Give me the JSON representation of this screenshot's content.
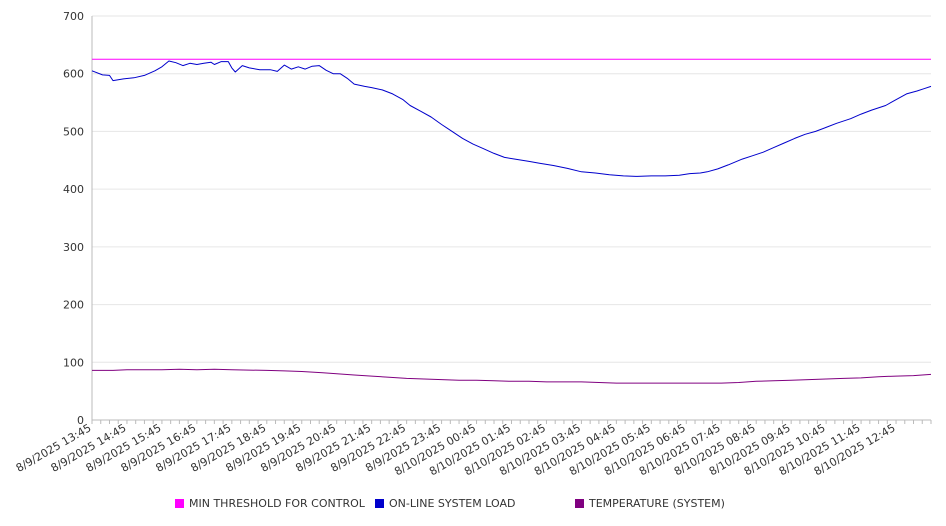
{
  "chart_data": {
    "type": "line",
    "ylim": [
      0,
      700
    ],
    "yticks": [
      0,
      100,
      200,
      300,
      400,
      500,
      600,
      700
    ],
    "x_tick_labels": [
      "8/9/2025 13:45",
      "8/9/2025 14:45",
      "8/9/2025 15:45",
      "8/9/2025 16:45",
      "8/9/2025 17:45",
      "8/9/2025 18:45",
      "8/9/2025 19:45",
      "8/9/2025 20:45",
      "8/9/2025 21:45",
      "8/9/2025 22:45",
      "8/9/2025 23:45",
      "8/10/2025 00:45",
      "8/10/2025 01:45",
      "8/10/2025 02:45",
      "8/10/2025 03:45",
      "8/10/2025 04:45",
      "8/10/2025 05:45",
      "8/10/2025 06:45",
      "8/10/2025 07:45",
      "8/10/2025 08:45",
      "8/10/2025 09:45",
      "8/10/2025 10:45",
      "8/10/2025 11:45",
      "8/10/2025 12:45"
    ],
    "x_hours": [
      0,
      24
    ],
    "grid": true,
    "legend_position": "bottom",
    "series": [
      {
        "name": "MIN THRESHOLD FOR CONTROL",
        "color": "#ff00ff",
        "points": [
          [
            0,
            625
          ],
          [
            24,
            625
          ]
        ]
      },
      {
        "name": "ON-LINE SYSTEM LOAD",
        "color": "#0000cc",
        "points": [
          [
            0,
            605
          ],
          [
            0.3,
            598
          ],
          [
            0.5,
            597
          ],
          [
            0.6,
            588
          ],
          [
            0.9,
            591
          ],
          [
            1.2,
            593
          ],
          [
            1.5,
            597
          ],
          [
            1.8,
            605
          ],
          [
            2.0,
            612
          ],
          [
            2.2,
            622
          ],
          [
            2.4,
            619
          ],
          [
            2.6,
            614
          ],
          [
            2.8,
            618
          ],
          [
            3.0,
            616
          ],
          [
            3.2,
            618
          ],
          [
            3.4,
            620
          ],
          [
            3.5,
            616
          ],
          [
            3.7,
            621
          ],
          [
            3.9,
            621
          ],
          [
            4.0,
            610
          ],
          [
            4.1,
            603
          ],
          [
            4.3,
            614
          ],
          [
            4.5,
            610
          ],
          [
            4.8,
            607
          ],
          [
            5.1,
            607
          ],
          [
            5.3,
            604
          ],
          [
            5.5,
            615
          ],
          [
            5.7,
            608
          ],
          [
            5.9,
            612
          ],
          [
            6.1,
            608
          ],
          [
            6.3,
            613
          ],
          [
            6.5,
            614
          ],
          [
            6.7,
            606
          ],
          [
            6.9,
            600
          ],
          [
            7.1,
            600
          ],
          [
            7.3,
            592
          ],
          [
            7.5,
            582
          ],
          [
            7.8,
            578
          ],
          [
            8.0,
            576
          ],
          [
            8.3,
            572
          ],
          [
            8.6,
            565
          ],
          [
            8.9,
            555
          ],
          [
            9.1,
            545
          ],
          [
            9.4,
            535
          ],
          [
            9.7,
            525
          ],
          [
            10.0,
            512
          ],
          [
            10.3,
            500
          ],
          [
            10.6,
            488
          ],
          [
            10.9,
            478
          ],
          [
            11.2,
            470
          ],
          [
            11.5,
            462
          ],
          [
            11.8,
            455
          ],
          [
            12.1,
            452
          ],
          [
            12.5,
            448
          ],
          [
            12.8,
            445
          ],
          [
            13.2,
            441
          ],
          [
            13.6,
            436
          ],
          [
            14.0,
            430
          ],
          [
            14.4,
            428
          ],
          [
            14.8,
            425
          ],
          [
            15.2,
            423
          ],
          [
            15.6,
            422
          ],
          [
            16.0,
            423
          ],
          [
            16.4,
            423
          ],
          [
            16.8,
            424
          ],
          [
            17.1,
            427
          ],
          [
            17.4,
            428
          ],
          [
            17.6,
            430
          ],
          [
            17.9,
            435
          ],
          [
            18.2,
            442
          ],
          [
            18.6,
            452
          ],
          [
            18.9,
            458
          ],
          [
            19.2,
            464
          ],
          [
            19.5,
            472
          ],
          [
            19.8,
            480
          ],
          [
            20.1,
            488
          ],
          [
            20.4,
            495
          ],
          [
            20.7,
            500
          ],
          [
            21.0,
            507
          ],
          [
            21.3,
            514
          ],
          [
            21.7,
            522
          ],
          [
            22.0,
            530
          ],
          [
            22.3,
            537
          ],
          [
            22.7,
            545
          ],
          [
            23.0,
            555
          ],
          [
            23.3,
            565
          ],
          [
            23.6,
            570
          ],
          [
            23.8,
            574
          ],
          [
            24.0,
            578
          ]
        ]
      },
      {
        "name": "TEMPERATURE (SYSTEM)",
        "color": "#800080",
        "points": [
          [
            0,
            86
          ],
          [
            0.6,
            86
          ],
          [
            1.0,
            87
          ],
          [
            2.0,
            87
          ],
          [
            2.5,
            88
          ],
          [
            3.0,
            87
          ],
          [
            3.5,
            88
          ],
          [
            4.0,
            87
          ],
          [
            5.0,
            86
          ],
          [
            5.5,
            85
          ],
          [
            6.0,
            84
          ],
          [
            6.6,
            82
          ],
          [
            7.0,
            80
          ],
          [
            7.5,
            78
          ],
          [
            8.0,
            76
          ],
          [
            8.5,
            74
          ],
          [
            9.0,
            72
          ],
          [
            9.5,
            71
          ],
          [
            10.0,
            70
          ],
          [
            10.5,
            69
          ],
          [
            11.0,
            69
          ],
          [
            11.5,
            68
          ],
          [
            12.0,
            67
          ],
          [
            12.5,
            67
          ],
          [
            13.0,
            66
          ],
          [
            13.5,
            66
          ],
          [
            14.0,
            66
          ],
          [
            14.5,
            65
          ],
          [
            15.0,
            64
          ],
          [
            15.5,
            64
          ],
          [
            16.0,
            64
          ],
          [
            17.0,
            64
          ],
          [
            18.0,
            64
          ],
          [
            18.5,
            65
          ],
          [
            19.0,
            67
          ],
          [
            19.5,
            68
          ],
          [
            20.0,
            69
          ],
          [
            20.5,
            70
          ],
          [
            21.0,
            71
          ],
          [
            21.5,
            72
          ],
          [
            22.0,
            73
          ],
          [
            22.5,
            75
          ],
          [
            23.0,
            76
          ],
          [
            23.5,
            77
          ],
          [
            24.0,
            79
          ]
        ]
      }
    ]
  }
}
